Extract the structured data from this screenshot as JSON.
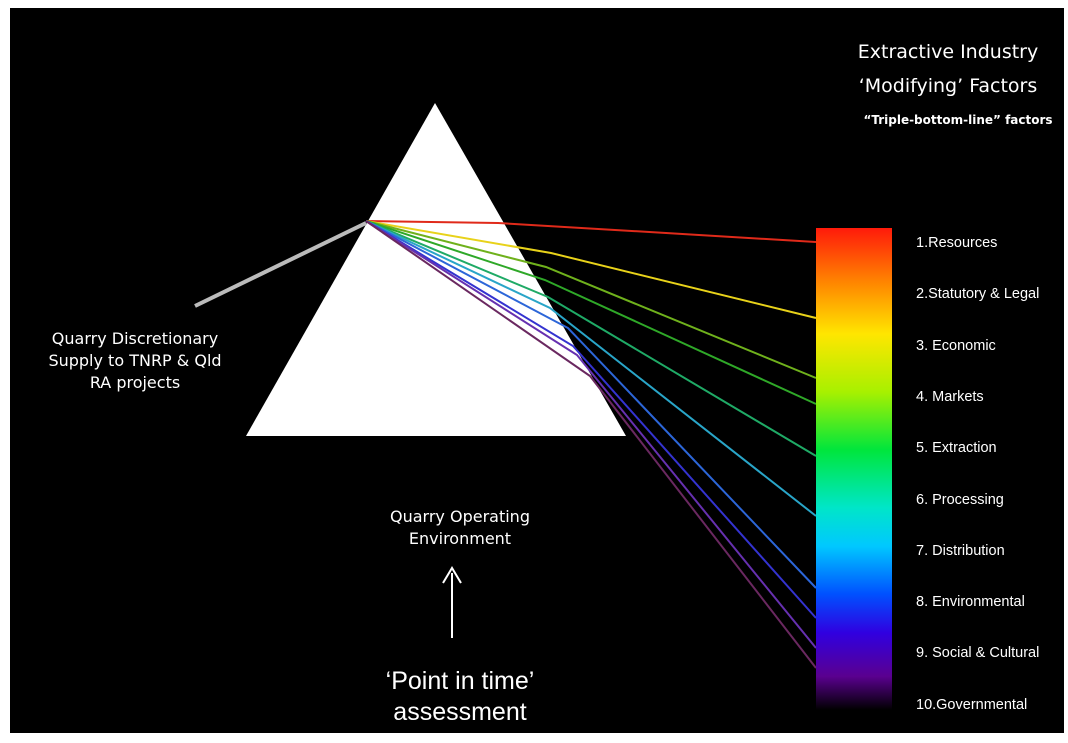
{
  "title": {
    "line1": "Extractive Industry",
    "line2": "‘Modifying’ Factors",
    "subtitle": "“Triple-bottom-line” factors"
  },
  "input_label": {
    "line1": "Quarry Discretionary",
    "line2": "Supply to TNRP & Qld",
    "line3": "RA projects"
  },
  "environment_label": {
    "line1": "Quarry Operating",
    "line2": "Environment"
  },
  "assessment_label": {
    "line1": "‘Point in time’",
    "line2": "assessment"
  },
  "factors": [
    {
      "label": "1.Resources",
      "color": "#e02a1a"
    },
    {
      "label": "2.Statutory & Legal",
      "color": "#e8d21a"
    },
    {
      "label": "3. Economic",
      "color": "#6fb11c"
    },
    {
      "label": "4. Markets",
      "color": "#2fa828"
    },
    {
      "label": "5. Extraction",
      "color": "#1faa66"
    },
    {
      "label": "6. Processing",
      "color": "#29a5c8"
    },
    {
      "label": "7. Distribution",
      "color": "#2c66d8"
    },
    {
      "label": "8. Environmental",
      "color": "#3433d0"
    },
    {
      "label": "9. Social & Cultural",
      "color": "#6630b0"
    },
    {
      "label": "10.Governmental",
      "color": "#6a2860"
    }
  ],
  "colors": {
    "background": "#000000",
    "prism": "#ffffff",
    "input_beam": "#bbbbbb"
  }
}
